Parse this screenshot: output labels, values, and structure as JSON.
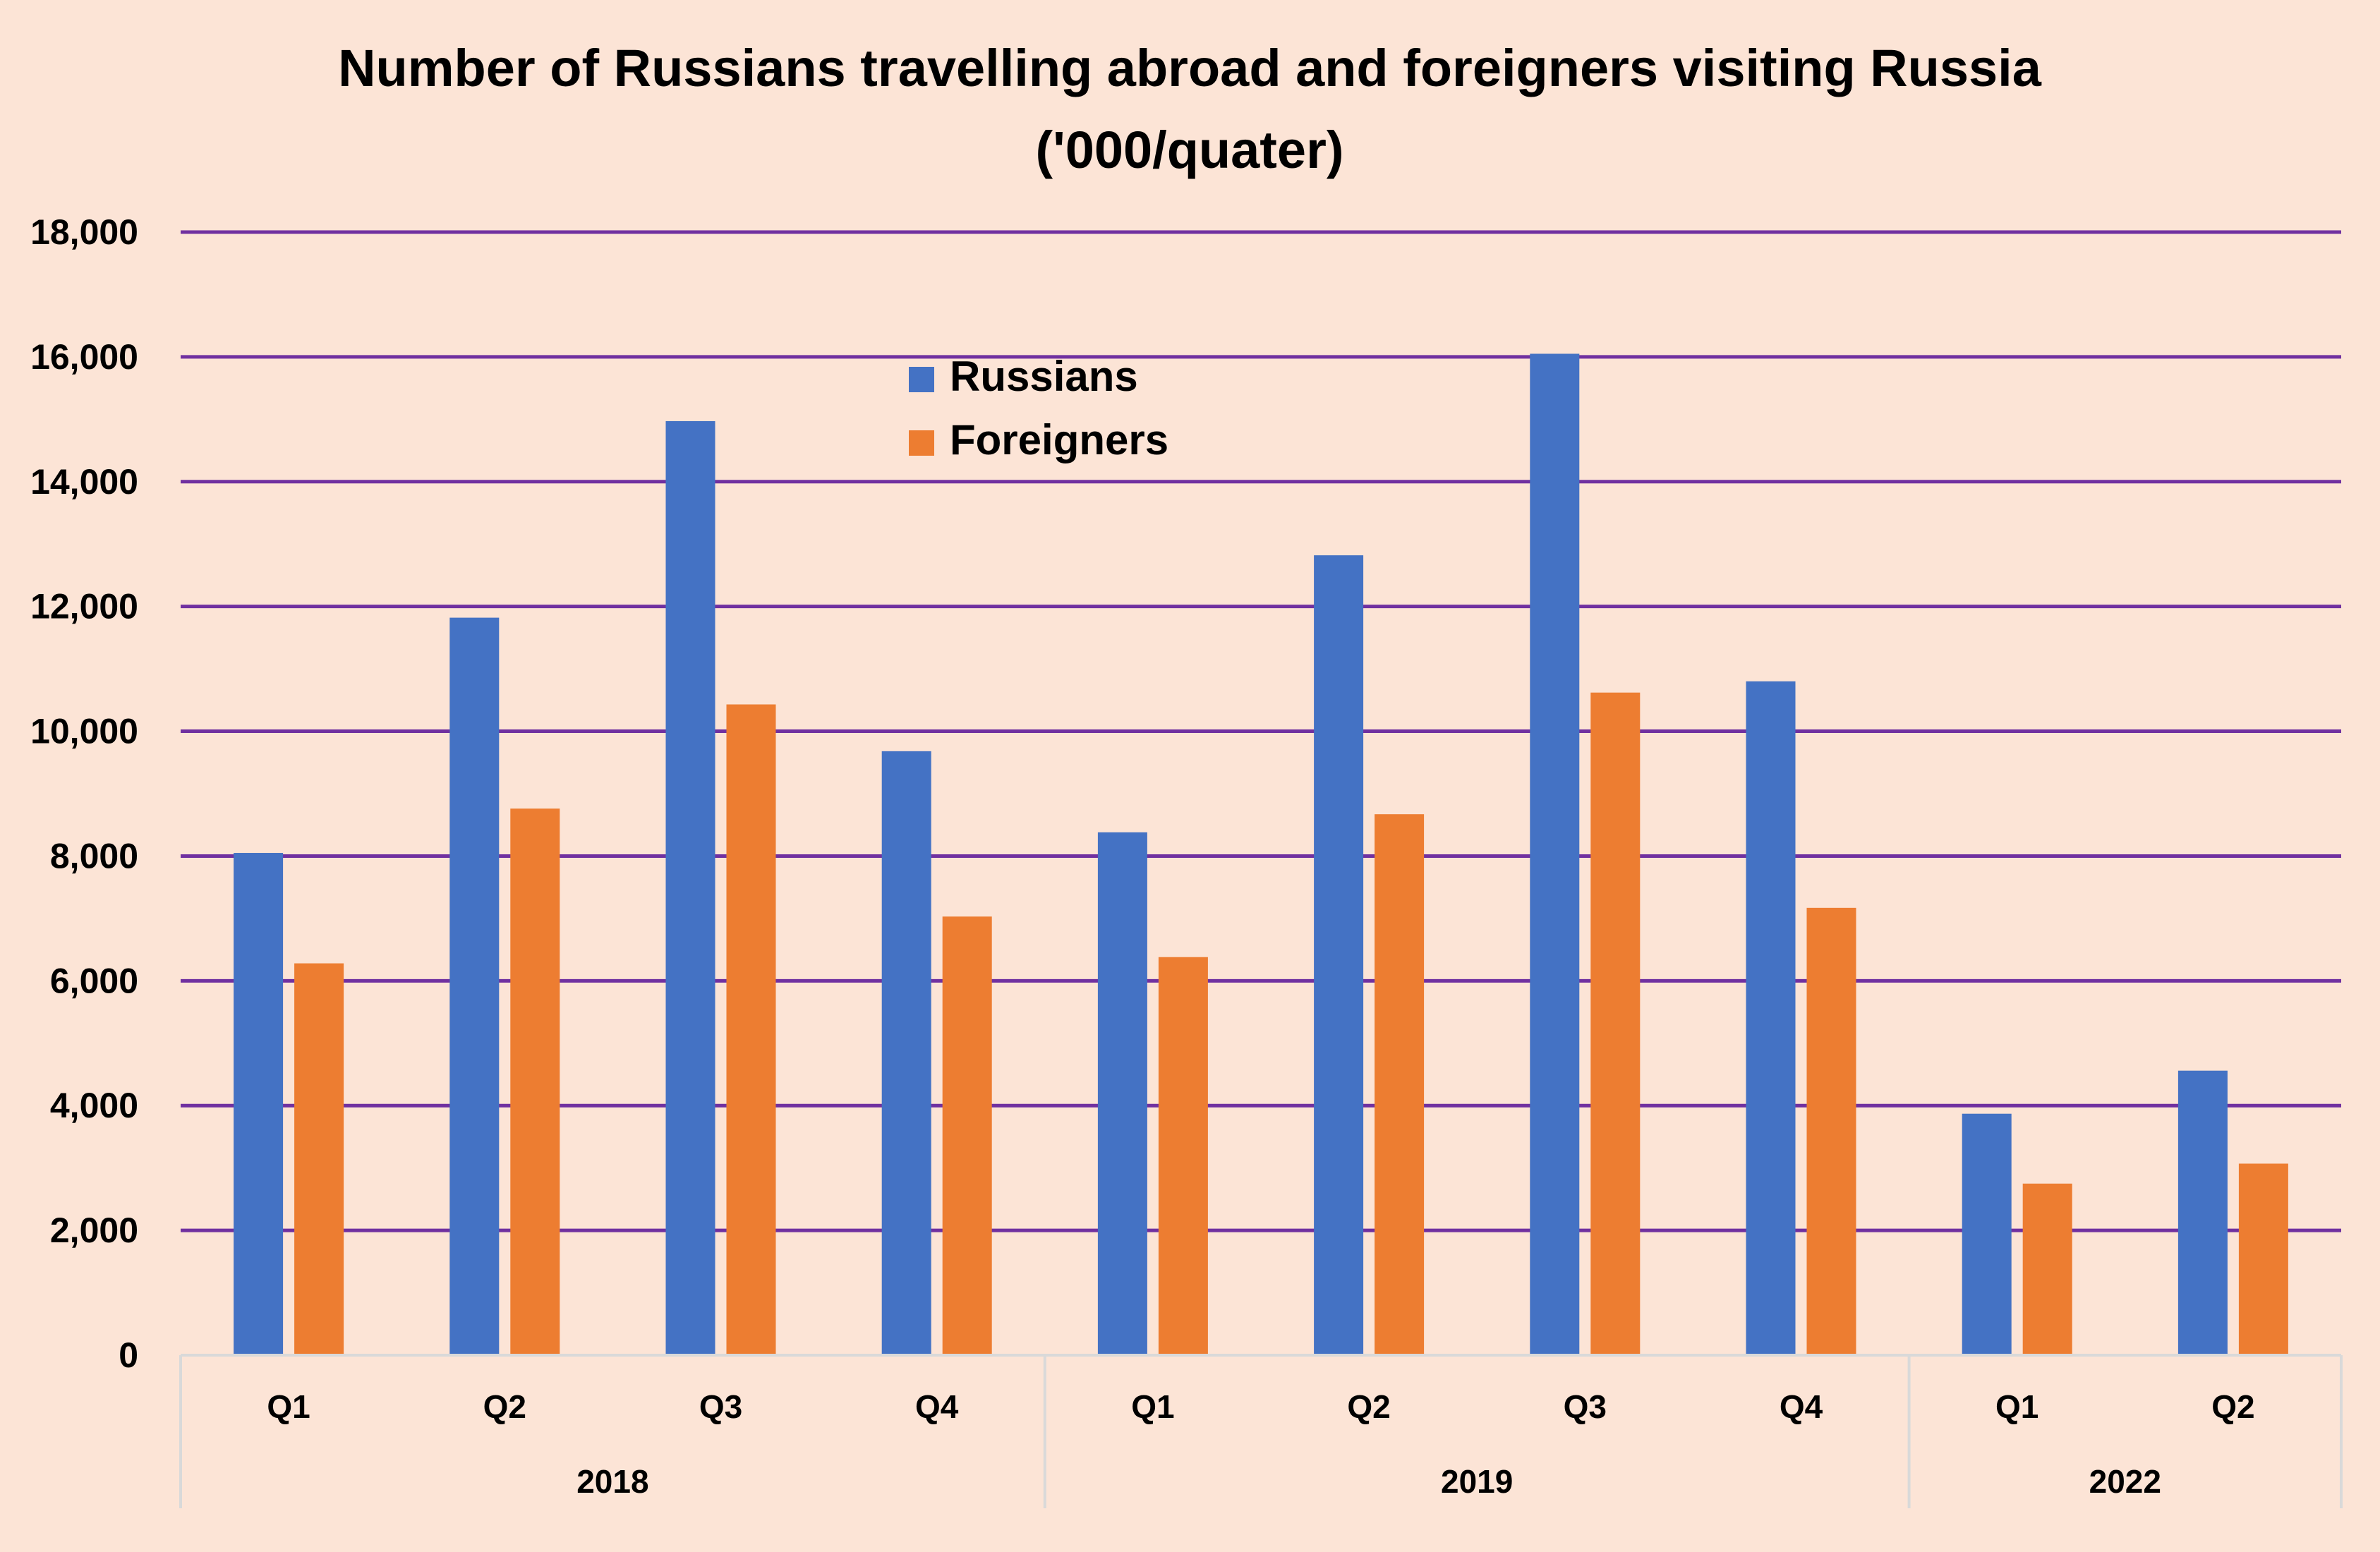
{
  "chart_data": {
    "type": "bar",
    "title": "Number of Russians travelling abroad and foreigners visiting Russia",
    "subtitle": "('000/quater)",
    "xlabel": "",
    "ylabel": "",
    "ylim": [
      0,
      18000
    ],
    "yticks": [
      0,
      2000,
      4000,
      6000,
      8000,
      10000,
      12000,
      14000,
      16000,
      18000
    ],
    "ytick_labels": [
      "0",
      "2,000",
      "4,000",
      "6,000",
      "8,000",
      "10,000",
      "12,000",
      "14,000",
      "16,000",
      "18,000"
    ],
    "grid": true,
    "legend_position": "top-center",
    "groups": [
      {
        "label": "2018",
        "categories": [
          "Q1",
          "Q2",
          "Q3",
          "Q4"
        ]
      },
      {
        "label": "2019",
        "categories": [
          "Q1",
          "Q2",
          "Q3",
          "Q4"
        ]
      },
      {
        "label": "2022",
        "categories": [
          "Q1",
          "Q2"
        ]
      }
    ],
    "categories": [
      "Q1",
      "Q2",
      "Q3",
      "Q4",
      "Q1",
      "Q2",
      "Q3",
      "Q4",
      "Q1",
      "Q2"
    ],
    "series": [
      {
        "name": "Russians",
        "color": "#4472c4",
        "values": [
          8050,
          11820,
          14970,
          9680,
          8380,
          12820,
          16050,
          10800,
          3870,
          4560
        ]
      },
      {
        "name": "Foreigners",
        "color": "#ed7d31",
        "values": [
          6280,
          8760,
          10430,
          7030,
          6380,
          8670,
          10620,
          7170,
          2750,
          3070
        ]
      }
    ],
    "colors": {
      "background": "#fce4d6",
      "gridline": "#7030a0",
      "axis": "#d9d9d9"
    }
  }
}
